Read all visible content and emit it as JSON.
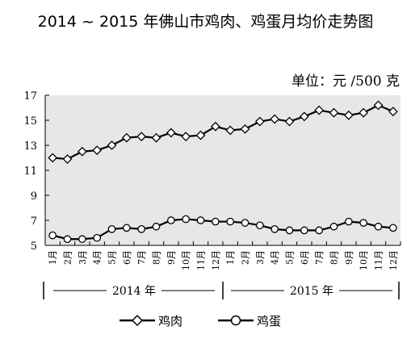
{
  "chart_data": {
    "type": "line",
    "title": "2014 ~ 2015 年佛山市鸡肉、鸡蛋月均价走势图",
    "unit": "单位：元 /500 克",
    "ylim": [
      5,
      17
    ],
    "yticks": [
      "5",
      "7",
      "9",
      "11",
      "13",
      "15",
      "17"
    ],
    "months": [
      "1月",
      "2月",
      "3月",
      "4月",
      "5月",
      "6月",
      "7月",
      "8月",
      "9月",
      "10月",
      "11月",
      "12月",
      "1月",
      "2月",
      "3月",
      "4月",
      "5月",
      "6月",
      "7月",
      "8月",
      "9月",
      "10月",
      "11月",
      "12月"
    ],
    "years": [
      "2014 年",
      "2015 年"
    ],
    "grid": false,
    "legend_position": "bottom",
    "series": [
      {
        "name": "鸡肉",
        "marker": "diamond",
        "values": [
          12.0,
          11.9,
          12.5,
          12.6,
          13.0,
          13.6,
          13.7,
          13.6,
          14.0,
          13.7,
          13.8,
          14.5,
          14.2,
          14.3,
          14.9,
          15.1,
          14.9,
          15.3,
          15.8,
          15.6,
          15.4,
          15.6,
          16.2,
          15.7
        ]
      },
      {
        "name": "鸡蛋",
        "marker": "circle",
        "values": [
          5.8,
          5.5,
          5.5,
          5.6,
          6.3,
          6.4,
          6.3,
          6.5,
          7.0,
          7.1,
          7.0,
          6.9,
          6.9,
          6.8,
          6.6,
          6.3,
          6.2,
          6.2,
          6.2,
          6.5,
          6.9,
          6.8,
          6.5,
          6.4
        ]
      }
    ]
  }
}
